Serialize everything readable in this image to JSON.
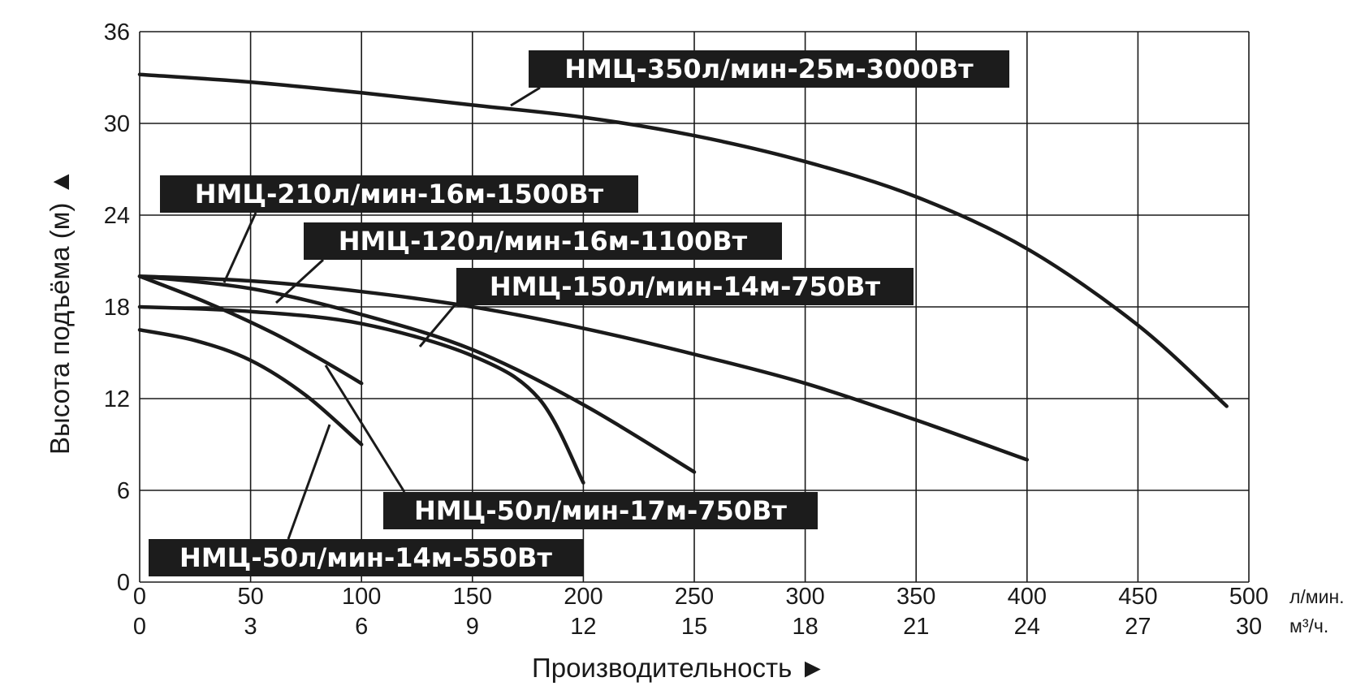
{
  "chart_data": {
    "type": "line",
    "ylabel": "Высота подъёма (м) ▲",
    "xlabel": "Производительность ►",
    "x_unit_primary": "л/мин.",
    "x_unit_secondary": "м³/ч.",
    "xlim": [
      0,
      500
    ],
    "ylim": [
      0,
      36
    ],
    "x_ticks": [
      "0",
      "50",
      "100",
      "150",
      "200",
      "250",
      "300",
      "350",
      "400",
      "450",
      "500"
    ],
    "x_ticks_secondary": [
      "0",
      "3",
      "6",
      "9",
      "12",
      "15",
      "18",
      "21",
      "24",
      "27",
      "30"
    ],
    "y_ticks": [
      "0",
      "6",
      "12",
      "18",
      "24",
      "30",
      "36"
    ],
    "grid": true,
    "series": [
      {
        "name": "НМЦ-350л/мин-25м-3000Вт",
        "x": [
          0,
          50,
          100,
          150,
          200,
          250,
          300,
          350,
          400,
          450,
          490
        ],
        "y": [
          33.2,
          32.7,
          32.0,
          31.2,
          30.4,
          29.2,
          27.5,
          25.2,
          21.8,
          16.8,
          11.5
        ]
      },
      {
        "name": "НМЦ-210л/мин-16м-1500Вт",
        "x": [
          0,
          50,
          100,
          150,
          200,
          250,
          300,
          350,
          400
        ],
        "y": [
          20.0,
          19.7,
          19.0,
          18.0,
          16.6,
          14.9,
          13.0,
          10.6,
          8.0
        ]
      },
      {
        "name": "НМЦ-120л/мин-16м-1100Вт",
        "x": [
          0,
          50,
          100,
          150,
          200,
          250
        ],
        "y": [
          20.0,
          19.2,
          17.5,
          15.2,
          11.6,
          7.2
        ]
      },
      {
        "name": "НМЦ-150л/мин-14м-750Вт",
        "x": [
          0,
          50,
          100,
          150,
          180,
          200
        ],
        "y": [
          18.0,
          17.7,
          16.9,
          14.8,
          12.0,
          6.5
        ]
      },
      {
        "name": "НМЦ-50л/мин-17м-750Вт",
        "x": [
          0,
          30,
          60,
          80,
          100
        ],
        "y": [
          20.0,
          18.3,
          16.3,
          14.7,
          13.0
        ]
      },
      {
        "name": "НМЦ-50л/мин-14м-550Вт",
        "x": [
          0,
          25,
          50,
          75,
          100
        ],
        "y": [
          16.5,
          15.8,
          14.5,
          12.2,
          9.0
        ]
      }
    ]
  }
}
